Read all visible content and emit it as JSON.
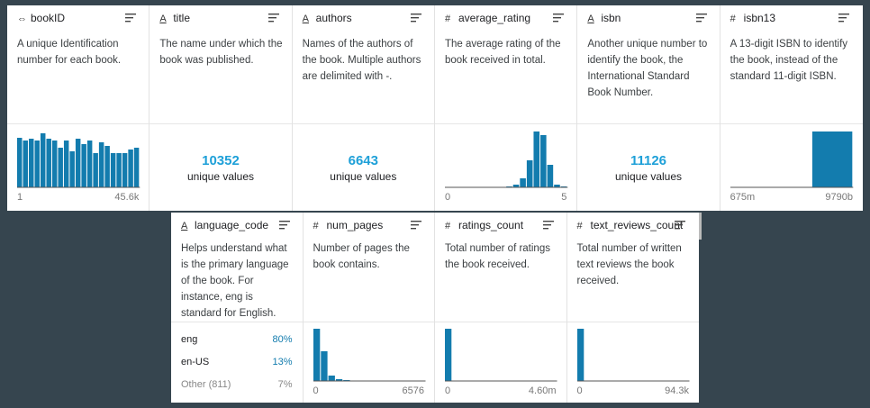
{
  "bar_color": "#137cae",
  "accent_color": "#1ea0d8",
  "top_columns": [
    {
      "icon": "⇔",
      "name": "bookID",
      "description": "A unique Identification number for each book.",
      "histogram": {
        "values": [
          55,
          52,
          54,
          52,
          60,
          54,
          52,
          44,
          52,
          40,
          54,
          48,
          52,
          38,
          50,
          46,
          38,
          38,
          38,
          42,
          44
        ],
        "min_label": "1",
        "max_label": "45.6k"
      }
    },
    {
      "icon": "A",
      "name": "title",
      "description": "The name under which the book was published.",
      "unique": {
        "count": 10352,
        "label": "unique values"
      }
    },
    {
      "icon": "A",
      "name": "authors",
      "description": "Names of the authors of the book. Multiple authors are delimited with -.",
      "unique": {
        "count": 6643,
        "label": "unique values"
      }
    },
    {
      "icon": "#",
      "name": "average_rating",
      "description": "The average rating of the book received in total.",
      "histogram": {
        "values": [
          0,
          0,
          0,
          0,
          0,
          0,
          0,
          0,
          0,
          1,
          3,
          10,
          30,
          62,
          58,
          25,
          3,
          1
        ],
        "min_label": "0",
        "max_label": "5"
      }
    },
    {
      "icon": "A",
      "name": "isbn",
      "description": "Another unique number to identify the book, the International Standard Book Number.",
      "unique": {
        "count": 11126,
        "label": "unique values"
      }
    },
    {
      "icon": "#",
      "name": "isbn13",
      "description": "A 13-digit ISBN to identify the book, instead of the standard 11-digit ISBN.",
      "histogram": {
        "values": [
          0,
          0,
          62
        ],
        "min_label": "675m",
        "max_label": "9790b"
      }
    }
  ],
  "bottom_columns": [
    {
      "icon": "A",
      "name": "language_code",
      "description": "Helps understand what is the primary language of the book. For instance, eng is standard for English.",
      "top_values": {
        "labels": [
          "eng",
          "en-US",
          "Other (811)"
        ],
        "values": [
          80,
          13,
          7
        ],
        "value_labels": [
          "80%",
          "13%",
          "7%"
        ]
      }
    },
    {
      "icon": "#",
      "name": "num_pages",
      "description": "Number of pages the book contains.",
      "histogram": {
        "values": [
          58,
          33,
          6,
          2,
          1,
          0,
          0,
          0,
          0,
          0,
          0,
          0,
          0,
          0,
          0
        ],
        "min_label": "0",
        "max_label": "6576"
      }
    },
    {
      "icon": "#",
      "name": "ratings_count",
      "description": "Total number of ratings the book received.",
      "histogram": {
        "values": [
          58,
          0.5,
          0,
          0,
          0,
          0,
          0,
          0,
          0,
          0,
          0,
          0,
          0,
          0,
          0
        ],
        "min_label": "0",
        "max_label": "4.60m"
      }
    },
    {
      "icon": "#",
      "name": "text_reviews_count",
      "description": "Total number of written text reviews the book received.",
      "histogram": {
        "values": [
          58,
          0.5,
          0,
          0,
          0,
          0,
          0,
          0,
          0,
          0,
          0,
          0,
          0,
          0,
          0
        ],
        "min_label": "0",
        "max_label": "94.3k"
      }
    }
  ]
}
